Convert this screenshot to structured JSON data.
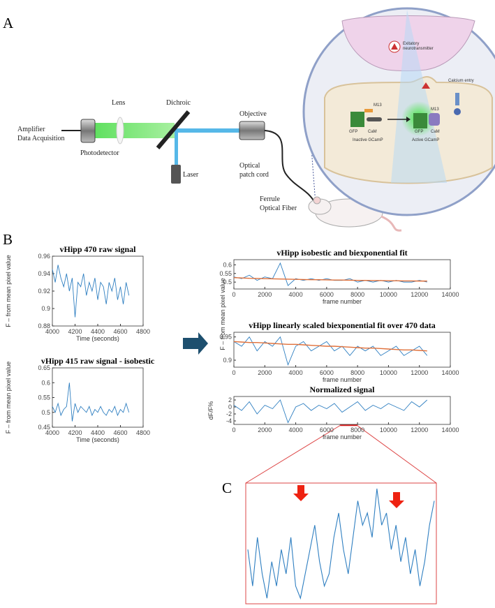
{
  "panels": [
    "A",
    "B",
    "C"
  ],
  "diagram": {
    "amplifier": [
      "Amplifier",
      "Data Acquisition"
    ],
    "photodetector": "Photodetector",
    "lens": "Lens",
    "dichroic": "Dichroic",
    "laser": "Laser",
    "objective": "Objective",
    "patch_cord": [
      "Optical",
      "patch cord"
    ],
    "ferrule": [
      "Ferrule",
      "Optical Fiber"
    ],
    "neurotransmitter": [
      "Exitatory",
      "neurotransmitter"
    ],
    "calcium": "Calcium entry",
    "inactive": {
      "m13": "M13",
      "gfp": "GFP",
      "cam": "CaM",
      "label": "Inactive GCamP"
    },
    "active": {
      "m13": "M13",
      "gfp": "GFP",
      "cam": "CaM",
      "label": "Active GCamP"
    }
  },
  "shared_ylabel": "F – from mean pixel value",
  "chart_data": [
    {
      "type": "line",
      "title": "vHipp 470 raw signal",
      "xlabel": "Time (seconds)",
      "ylabel": "F – from mean pixel value",
      "x": [
        4000,
        4025,
        4050,
        4075,
        4100,
        4125,
        4150,
        4175,
        4200,
        4225,
        4250,
        4275,
        4300,
        4325,
        4350,
        4375,
        4400,
        4425,
        4450,
        4475,
        4500,
        4525,
        4550,
        4575,
        4600,
        4625,
        4650,
        4675
      ],
      "series": [
        {
          "color": "#2f7fc1",
          "values": [
            0.945,
            0.93,
            0.95,
            0.935,
            0.925,
            0.94,
            0.92,
            0.935,
            0.89,
            0.93,
            0.925,
            0.94,
            0.915,
            0.93,
            0.92,
            0.935,
            0.91,
            0.93,
            0.925,
            0.905,
            0.93,
            0.92,
            0.935,
            0.91,
            0.925,
            0.905,
            0.93,
            0.915
          ]
        }
      ],
      "xlim": [
        4000,
        4800
      ],
      "xticks": [
        4000,
        4200,
        4400,
        4600,
        4800
      ],
      "ylim": [
        0.88,
        0.96
      ],
      "yticks": [
        0.88,
        0.9,
        0.92,
        0.94,
        0.96
      ]
    },
    {
      "type": "line",
      "title": "vHipp 415 raw signal - isobestic",
      "xlabel": "Time (seconds)",
      "ylabel": "F – from mean pixel value",
      "x": [
        4000,
        4025,
        4050,
        4075,
        4100,
        4125,
        4150,
        4175,
        4200,
        4225,
        4250,
        4275,
        4300,
        4325,
        4350,
        4375,
        4400,
        4425,
        4450,
        4475,
        4500,
        4525,
        4550,
        4575,
        4600,
        4625,
        4650,
        4675
      ],
      "series": [
        {
          "color": "#2f7fc1",
          "values": [
            0.52,
            0.5,
            0.53,
            0.49,
            0.51,
            0.52,
            0.6,
            0.47,
            0.53,
            0.5,
            0.52,
            0.51,
            0.5,
            0.52,
            0.49,
            0.51,
            0.5,
            0.52,
            0.5,
            0.49,
            0.51,
            0.5,
            0.52,
            0.49,
            0.51,
            0.5,
            0.53,
            0.5
          ]
        }
      ],
      "xlim": [
        4000,
        4800
      ],
      "xticks": [
        4000,
        4200,
        4400,
        4600,
        4800
      ],
      "ylim": [
        0.45,
        0.65
      ],
      "yticks": [
        0.45,
        0.5,
        0.55,
        0.6,
        0.65
      ]
    },
    {
      "type": "line",
      "title": "vHipp isobestic and biexponential fit",
      "xlabel": "frame number",
      "x": [
        0,
        500,
        1000,
        1500,
        2000,
        2500,
        3000,
        3500,
        4000,
        4500,
        5000,
        5500,
        6000,
        6500,
        7000,
        7500,
        8000,
        8500,
        9000,
        9500,
        10000,
        10500,
        11000,
        11500,
        12000,
        12500
      ],
      "series": [
        {
          "color": "#2f7fc1",
          "values": [
            0.53,
            0.52,
            0.54,
            0.51,
            0.53,
            0.52,
            0.61,
            0.48,
            0.52,
            0.51,
            0.52,
            0.51,
            0.52,
            0.51,
            0.51,
            0.52,
            0.5,
            0.51,
            0.5,
            0.51,
            0.5,
            0.51,
            0.5,
            0.5,
            0.51,
            0.5
          ]
        },
        {
          "color": "#e0703a",
          "values": [
            0.526,
            0.524,
            0.522,
            0.521,
            0.52,
            0.519,
            0.518,
            0.517,
            0.516,
            0.515,
            0.514,
            0.514,
            0.513,
            0.512,
            0.512,
            0.511,
            0.51,
            0.51,
            0.509,
            0.509,
            0.508,
            0.508,
            0.507,
            0.507,
            0.506,
            0.506
          ]
        }
      ],
      "xlim": [
        0,
        14000
      ],
      "xticks": [
        0,
        2000,
        4000,
        6000,
        8000,
        10000,
        12000,
        14000
      ],
      "ylim": [
        0.46,
        0.63
      ],
      "yticks": [
        0.5,
        0.55,
        0.6
      ]
    },
    {
      "type": "line",
      "title": "vHipp linearly scaled biexponential fit over 470 data",
      "xlabel": "frame number",
      "x": [
        0,
        500,
        1000,
        1500,
        2000,
        2500,
        3000,
        3500,
        4000,
        4500,
        5000,
        5500,
        6000,
        6500,
        7000,
        7500,
        8000,
        8500,
        9000,
        9500,
        10000,
        10500,
        11000,
        11500,
        12000,
        12500
      ],
      "series": [
        {
          "color": "#2f7fc1",
          "values": [
            0.94,
            0.93,
            0.95,
            0.92,
            0.94,
            0.93,
            0.95,
            0.89,
            0.93,
            0.94,
            0.92,
            0.93,
            0.94,
            0.92,
            0.93,
            0.91,
            0.93,
            0.92,
            0.93,
            0.91,
            0.92,
            0.93,
            0.91,
            0.92,
            0.93,
            0.91
          ]
        },
        {
          "color": "#e0703a",
          "values": [
            0.94,
            0.939,
            0.938,
            0.938,
            0.937,
            0.936,
            0.935,
            0.934,
            0.934,
            0.933,
            0.932,
            0.931,
            0.93,
            0.93,
            0.929,
            0.928,
            0.927,
            0.926,
            0.926,
            0.925,
            0.924,
            0.923,
            0.922,
            0.922,
            0.921,
            0.92
          ]
        }
      ],
      "xlim": [
        0,
        14000
      ],
      "xticks": [
        0,
        2000,
        4000,
        6000,
        8000,
        10000,
        12000,
        14000
      ],
      "ylim": [
        0.885,
        0.96
      ],
      "yticks": [
        0.9,
        0.95
      ]
    },
    {
      "type": "line",
      "title": "Normalized signal",
      "xlabel": "frame number",
      "ylabel": "dF/F%",
      "x": [
        0,
        500,
        1000,
        1500,
        2000,
        2500,
        3000,
        3500,
        4000,
        4500,
        5000,
        5500,
        6000,
        6500,
        7000,
        7500,
        8000,
        8500,
        9000,
        9500,
        10000,
        10500,
        11000,
        11500,
        12000,
        12500
      ],
      "series": [
        {
          "color": "#2f7fc1",
          "values": [
            0.5,
            -1,
            1.5,
            -2,
            0.5,
            -0.5,
            2,
            -4.5,
            0,
            1,
            -1,
            0.5,
            -0.5,
            1,
            -1.5,
            0,
            1.5,
            -1,
            0.5,
            -0.5,
            1,
            0,
            -1,
            1.5,
            0,
            2
          ]
        }
      ],
      "xlim": [
        0,
        14000
      ],
      "xticks": [
        0,
        2000,
        4000,
        6000,
        8000,
        10000,
        12000,
        14000
      ],
      "ylim": [
        -5,
        3
      ],
      "yticks": [
        -4,
        -2,
        0,
        2
      ]
    },
    {
      "type": "trace",
      "series": [
        {
          "color": "#2f7fc1",
          "values": [
            5,
            2,
            6,
            3,
            1,
            4,
            2,
            5,
            3,
            6,
            2,
            1,
            3,
            5,
            7,
            4,
            2,
            3,
            6,
            8,
            5,
            3,
            6,
            9,
            7,
            8,
            6,
            10,
            7,
            8,
            5,
            7,
            4,
            6,
            3,
            5,
            2,
            4,
            7,
            9
          ]
        }
      ]
    }
  ]
}
